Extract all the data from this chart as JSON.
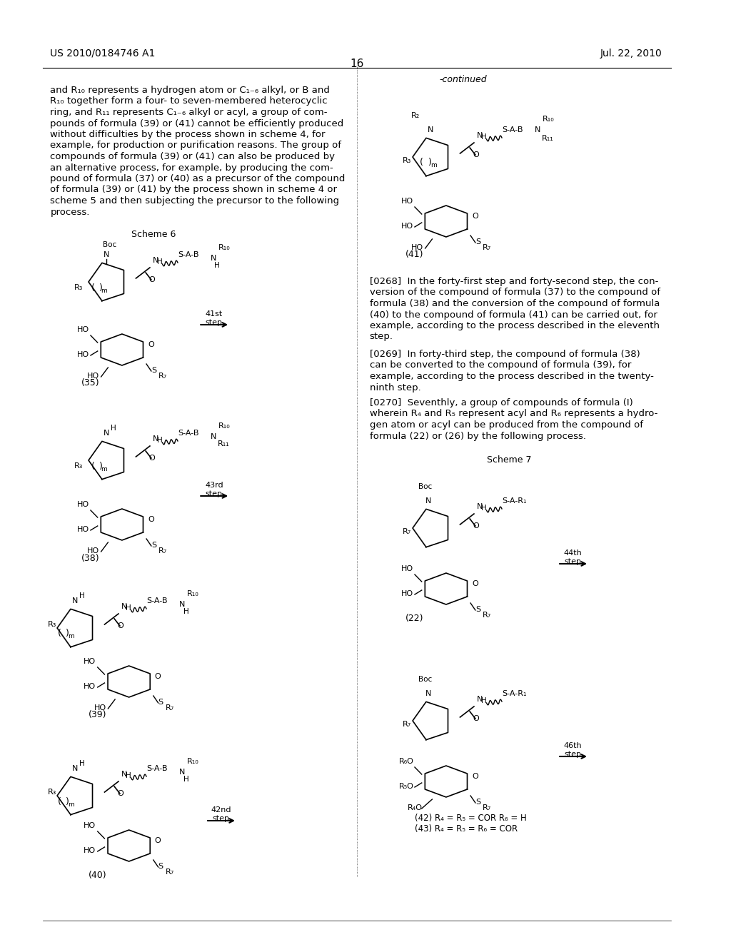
{
  "page_number": "16",
  "patent_number": "US 2010/0184746 A1",
  "date": "Jul. 22, 2010",
  "background_color": "#ffffff",
  "text_color": "#000000",
  "body_text": "and R₁₀ represents a hydrogen atom or C₁₋₆ alkyl, or B and R₁₀ together form a four- to seven-membered heterocyclic ring, and R₁₁ represents C₁₋₆ alkyl or acyl, a group of com-pounds of formula (39) or (41) cannot be efficiently produced without difficulties by the process shown in scheme 4, for example, for production or purification reasons. The group of compounds of formula (39) or (41) can also be produced by an alternative process, for example, by producing the com-pound of formula (37) or (40) as a precursor of the compound of formula (39) or (41) by the process shown in scheme 4 or scheme 5 and then subjecting the precursor to the following process.",
  "scheme6_label": "Scheme 6",
  "scheme7_label": "Scheme 7",
  "paragraph_268": "[0268] In the forty-first step and forty-second step, the con-version of the compound of formula (37) to the compound of formula (38) and the conversion of the compound of formula (40) to the compound of formula (41) can be carried out, for example, according to the process described in the eleventh step.",
  "paragraph_269": "[0269] In forty-third step, the compound of formula (38) can be converted to the compound of formula (39), for example, according to the process described in the twenty-ninth step.",
  "paragraph_270": "[0270] Seventhly, a group of compounds of formula (I) wherein R₄ and R₅ represent acyl and R₆ represents a hydro-gen atom or acyl can be produced from the compound of formula (22) or (26) by the following process.",
  "compound_labels": [
    "(35)",
    "(38)",
    "(39)",
    "(40)",
    "(41)",
    "(22)",
    "(42) R₄ = R₅ = COR R₆ = H",
    "(43) R₄ = R₅ = R₆ = COR"
  ],
  "step_labels": [
    "41st step",
    "43rd step",
    "42nd step",
    "44th step",
    "46th step"
  ],
  "continued_label": "-continued"
}
